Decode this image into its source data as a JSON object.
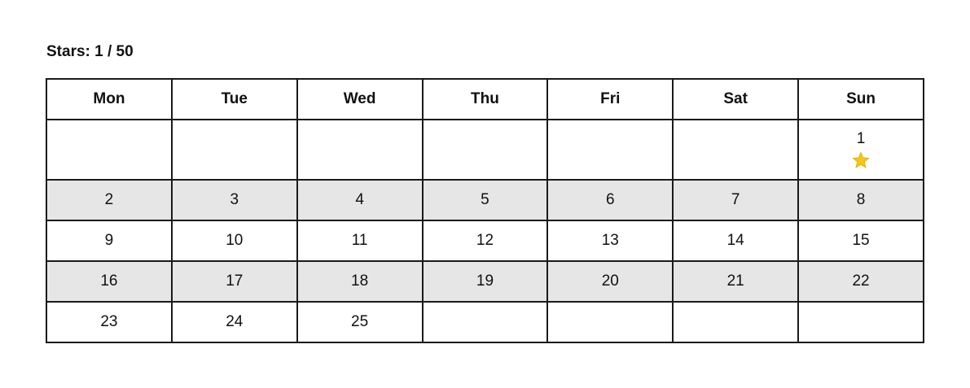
{
  "stars_label": "Stars: 1 / 50",
  "weekdays": [
    "Mon",
    "Tue",
    "Wed",
    "Thu",
    "Fri",
    "Sat",
    "Sun"
  ],
  "weeks": [
    [
      "",
      "",
      "",
      "",
      "",
      "",
      "1"
    ],
    [
      "2",
      "3",
      "4",
      "5",
      "6",
      "7",
      "8"
    ],
    [
      "9",
      "10",
      "11",
      "12",
      "13",
      "14",
      "15"
    ],
    [
      "16",
      "17",
      "18",
      "19",
      "20",
      "21",
      "22"
    ],
    [
      "23",
      "24",
      "25",
      "",
      "",
      "",
      ""
    ]
  ],
  "starred_days": [
    "1"
  ],
  "colors": {
    "star": "#f5c518",
    "shaded_row": "#e6e6e6",
    "border": "#1a1a1a"
  }
}
